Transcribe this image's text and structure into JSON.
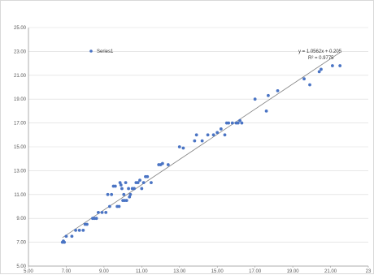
{
  "chart_data": {
    "type": "scatter",
    "title": "",
    "xlabel": "",
    "ylabel": "",
    "xlim": [
      5,
      23
    ],
    "ylim": [
      5,
      25
    ],
    "x_ticks": [
      5,
      7,
      9,
      11,
      13,
      15,
      17,
      19,
      21,
      23
    ],
    "x_tick_labels": [
      "5.00",
      "7.00",
      "9.00",
      "11.00",
      "13.00",
      "15.00",
      "17.00",
      "19.00",
      "21.00",
      "23"
    ],
    "y_ticks": [
      5,
      7,
      9,
      11,
      13,
      15,
      17,
      19,
      21,
      23,
      25
    ],
    "y_tick_labels": [
      "5.00",
      "7.00",
      "9.00",
      "11.00",
      "13.00",
      "15.00",
      "17.00",
      "19.00",
      "21.00",
      "23.00",
      "25.00"
    ],
    "grid": "horizontal",
    "legend": "top-left",
    "series": [
      {
        "name": "Series1",
        "color": "#4a74c4",
        "points": [
          [
            6.8,
            7.0
          ],
          [
            6.85,
            7.1
          ],
          [
            6.9,
            7.0
          ],
          [
            7.0,
            7.5
          ],
          [
            7.3,
            7.5
          ],
          [
            7.5,
            8.0
          ],
          [
            7.7,
            8.0
          ],
          [
            7.9,
            8.0
          ],
          [
            8.0,
            8.5
          ],
          [
            8.1,
            8.5
          ],
          [
            8.4,
            9.0
          ],
          [
            8.5,
            9.0
          ],
          [
            8.6,
            9.0
          ],
          [
            8.7,
            9.5
          ],
          [
            8.9,
            9.5
          ],
          [
            9.1,
            9.5
          ],
          [
            9.2,
            11.0
          ],
          [
            9.3,
            10.0
          ],
          [
            9.4,
            11.0
          ],
          [
            9.5,
            11.7
          ],
          [
            9.6,
            11.7
          ],
          [
            9.7,
            10.0
          ],
          [
            9.8,
            10.0
          ],
          [
            9.85,
            12.0
          ],
          [
            9.9,
            11.8
          ],
          [
            9.95,
            11.5
          ],
          [
            10.0,
            10.5
          ],
          [
            10.05,
            11.0
          ],
          [
            10.1,
            10.5
          ],
          [
            10.15,
            12.0
          ],
          [
            10.2,
            10.5
          ],
          [
            10.3,
            11.5
          ],
          [
            10.35,
            10.8
          ],
          [
            10.4,
            11.0
          ],
          [
            10.5,
            11.5
          ],
          [
            10.6,
            11.5
          ],
          [
            10.7,
            12.0
          ],
          [
            10.8,
            12.0
          ],
          [
            10.9,
            12.2
          ],
          [
            11.0,
            11.5
          ],
          [
            11.1,
            12.0
          ],
          [
            11.2,
            12.5
          ],
          [
            11.3,
            12.5
          ],
          [
            11.5,
            12.0
          ],
          [
            11.9,
            13.5
          ],
          [
            12.0,
            13.5
          ],
          [
            12.1,
            13.6
          ],
          [
            12.4,
            13.5
          ],
          [
            13.0,
            15.0
          ],
          [
            13.2,
            14.9
          ],
          [
            13.8,
            15.5
          ],
          [
            13.9,
            16.0
          ],
          [
            14.2,
            15.5
          ],
          [
            14.5,
            16.0
          ],
          [
            14.8,
            16.0
          ],
          [
            15.0,
            16.2
          ],
          [
            15.2,
            16.5
          ],
          [
            15.4,
            16.0
          ],
          [
            15.5,
            17.0
          ],
          [
            15.6,
            17.0
          ],
          [
            15.8,
            17.0
          ],
          [
            16.0,
            17.0
          ],
          [
            16.1,
            17.0
          ],
          [
            16.2,
            17.2
          ],
          [
            16.3,
            17.0
          ],
          [
            17.0,
            19.0
          ],
          [
            17.6,
            18.0
          ],
          [
            17.7,
            19.3
          ],
          [
            18.2,
            19.7
          ],
          [
            19.6,
            20.7
          ],
          [
            19.9,
            20.2
          ],
          [
            20.4,
            21.3
          ],
          [
            20.5,
            21.5
          ],
          [
            21.1,
            21.8
          ],
          [
            21.5,
            21.8
          ]
        ]
      }
    ],
    "trendline": {
      "slope": 1.0562,
      "intercept": 0.205,
      "equation": "y = 1.0562x + 0.205",
      "r_squared": "R² = 0.9775",
      "x_range": [
        6.8,
        21.5
      ],
      "color": "#7f7f7f"
    }
  }
}
